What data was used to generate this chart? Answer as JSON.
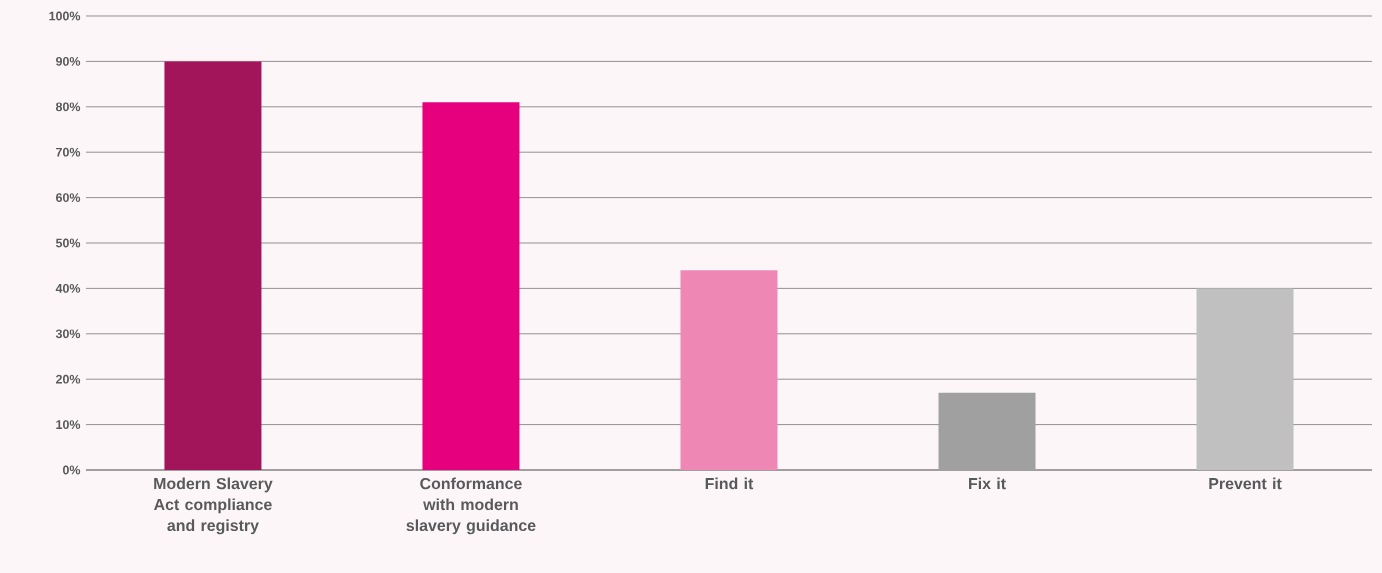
{
  "chart_data": {
    "type": "bar",
    "categories": [
      "Modern Slavery Act compliance and registry",
      "Conformance with modern slavery guidance",
      "Find it",
      "Fix it",
      "Prevent it"
    ],
    "values": [
      90,
      81,
      44,
      17,
      40
    ],
    "colors": [
      "#a3155b",
      "#e6007e",
      "#ef87b5",
      "#a0a0a0",
      "#c0c0c0"
    ],
    "ylim": [
      0,
      100
    ],
    "yticks": [
      {
        "value": 0,
        "label": "0%"
      },
      {
        "value": 10,
        "label": "10%"
      },
      {
        "value": 20,
        "label": "20%"
      },
      {
        "value": 30,
        "label": "30%"
      },
      {
        "value": 40,
        "label": "40%"
      },
      {
        "value": 50,
        "label": "50%"
      },
      {
        "value": 60,
        "label": "60%"
      },
      {
        "value": 70,
        "label": "70%"
      },
      {
        "value": 80,
        "label": "80%"
      },
      {
        "value": 90,
        "label": "90%"
      },
      {
        "value": 100,
        "label": "100%"
      }
    ],
    "grid": "y"
  }
}
